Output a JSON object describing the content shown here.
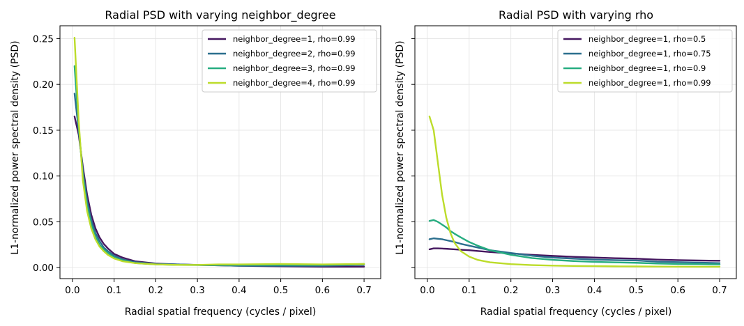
{
  "colors": {
    "deg1": "#45175f",
    "deg2": "#2b6f8e",
    "deg3": "#26ad80",
    "deg4": "#bcdc2a"
  },
  "chart_data": [
    {
      "type": "line",
      "title": "Radial PSD with varying neighbor_degree",
      "xlabel": "Radial spatial frequency (cycles / pixel)",
      "ylabel": "L1-normalized power spectral density (PSD)",
      "xlim": [
        -0.03,
        0.74
      ],
      "ylim": [
        -0.012,
        0.264
      ],
      "xticks": [
        0.0,
        0.1,
        0.2,
        0.3,
        0.4,
        0.5,
        0.6,
        0.7
      ],
      "xtick_labels": [
        "0.0",
        "0.1",
        "0.2",
        "0.3",
        "0.4",
        "0.5",
        "0.6",
        "0.7"
      ],
      "yticks": [
        0.0,
        0.05,
        0.1,
        0.15,
        0.2,
        0.25
      ],
      "ytick_labels": [
        "0.00",
        "0.05",
        "0.10",
        "0.15",
        "0.20",
        "0.25"
      ],
      "grid": true,
      "legend_position": "top-right",
      "x": [
        0.005,
        0.015,
        0.025,
        0.035,
        0.045,
        0.055,
        0.065,
        0.075,
        0.085,
        0.1,
        0.12,
        0.15,
        0.2,
        0.25,
        0.3,
        0.35,
        0.4,
        0.5,
        0.6,
        0.7
      ],
      "series": [
        {
          "name": "neighbor_degree=1, rho=0.99",
          "color": "#45175f",
          "values": [
            0.165,
            0.145,
            0.11,
            0.08,
            0.058,
            0.043,
            0.033,
            0.026,
            0.021,
            0.015,
            0.011,
            0.007,
            0.0045,
            0.0035,
            0.003,
            0.0025,
            0.002,
            0.0015,
            0.001,
            0.001
          ]
        },
        {
          "name": "neighbor_degree=2, rho=0.99",
          "color": "#2b6f8e",
          "values": [
            0.19,
            0.15,
            0.105,
            0.073,
            0.052,
            0.038,
            0.029,
            0.022,
            0.018,
            0.013,
            0.009,
            0.006,
            0.004,
            0.0035,
            0.003,
            0.0025,
            0.002,
            0.002,
            0.002,
            0.003
          ]
        },
        {
          "name": "neighbor_degree=3, rho=0.99",
          "color": "#26ad80",
          "values": [
            0.22,
            0.155,
            0.1,
            0.068,
            0.047,
            0.034,
            0.025,
            0.02,
            0.016,
            0.011,
            0.008,
            0.005,
            0.0035,
            0.003,
            0.0028,
            0.003,
            0.003,
            0.003,
            0.003,
            0.004
          ]
        },
        {
          "name": "neighbor_degree=4, rho=0.99",
          "color": "#bcdc2a",
          "values": [
            0.251,
            0.16,
            0.095,
            0.062,
            0.043,
            0.031,
            0.023,
            0.018,
            0.014,
            0.01,
            0.007,
            0.005,
            0.0035,
            0.003,
            0.003,
            0.0035,
            0.0035,
            0.004,
            0.0035,
            0.004
          ]
        }
      ]
    },
    {
      "type": "line",
      "title": "Radial PSD with varying rho",
      "xlabel": "Radial spatial frequency (cycles / pixel)",
      "ylabel": "L1-normalized power spectral density (PSD)",
      "xlim": [
        -0.03,
        0.74
      ],
      "ylim": [
        -0.012,
        0.264
      ],
      "xticks": [
        0.0,
        0.1,
        0.2,
        0.3,
        0.4,
        0.5,
        0.6,
        0.7
      ],
      "xtick_labels": [
        "0.0",
        "0.1",
        "0.2",
        "0.3",
        "0.4",
        "0.5",
        "0.6",
        "0.7"
      ],
      "yticks": [
        0.0,
        0.05,
        0.1,
        0.15,
        0.2,
        0.25
      ],
      "ytick_labels": [
        "",
        "",
        "",
        "",
        "",
        ""
      ],
      "grid": true,
      "legend_position": "top-right",
      "x": [
        0.005,
        0.015,
        0.025,
        0.035,
        0.045,
        0.055,
        0.065,
        0.08,
        0.1,
        0.12,
        0.15,
        0.2,
        0.25,
        0.3,
        0.35,
        0.4,
        0.45,
        0.5,
        0.55,
        0.6,
        0.65,
        0.7
      ],
      "series": [
        {
          "name": "neighbor_degree=1, rho=0.5",
          "color": "#45175f",
          "values": [
            0.02,
            0.021,
            0.021,
            0.0208,
            0.0206,
            0.0203,
            0.02,
            0.0195,
            0.019,
            0.0182,
            0.017,
            0.0155,
            0.014,
            0.0128,
            0.0118,
            0.011,
            0.0103,
            0.0098,
            0.0088,
            0.0082,
            0.0078,
            0.0075
          ]
        },
        {
          "name": "neighbor_degree=1, rho=0.75",
          "color": "#2b6f8e",
          "values": [
            0.031,
            0.032,
            0.0315,
            0.031,
            0.03,
            0.029,
            0.028,
            0.026,
            0.024,
            0.022,
            0.019,
            0.016,
            0.013,
            0.011,
            0.0098,
            0.0088,
            0.0082,
            0.0078,
            0.0065,
            0.006,
            0.0055,
            0.005
          ]
        },
        {
          "name": "neighbor_degree=1, rho=0.9",
          "color": "#26ad80",
          "values": [
            0.051,
            0.052,
            0.05,
            0.047,
            0.044,
            0.04,
            0.037,
            0.033,
            0.028,
            0.024,
            0.019,
            0.014,
            0.0105,
            0.0085,
            0.0072,
            0.0063,
            0.0057,
            0.0053,
            0.0045,
            0.004,
            0.0038,
            0.0035
          ]
        },
        {
          "name": "neighbor_degree=1, rho=0.99",
          "color": "#bcdc2a",
          "values": [
            0.165,
            0.15,
            0.115,
            0.08,
            0.055,
            0.038,
            0.027,
            0.018,
            0.012,
            0.0085,
            0.0058,
            0.0038,
            0.0028,
            0.0022,
            0.0018,
            0.0016,
            0.0014,
            0.0013,
            0.0012,
            0.0011,
            0.001,
            0.001
          ]
        }
      ]
    }
  ]
}
